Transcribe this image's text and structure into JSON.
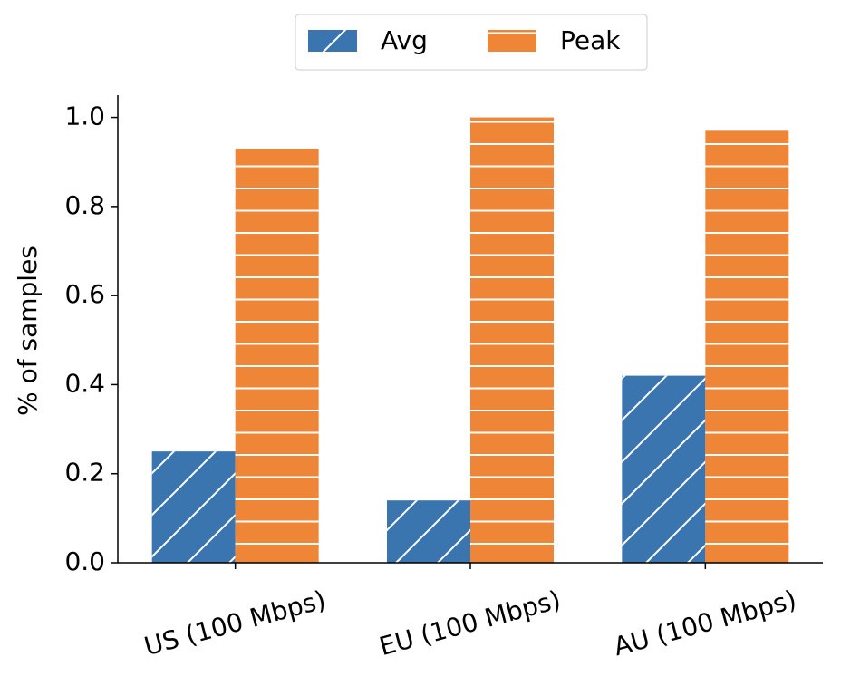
{
  "chart_data": {
    "type": "bar",
    "y_label": "% of samples",
    "categories": [
      "US (100 Mbps)",
      "EU (100 Mbps)",
      "AU (100 Mbps)"
    ],
    "series": [
      {
        "name": "Avg",
        "color": "#3b75af",
        "hatch": "diagonal",
        "values": [
          0.25,
          0.14,
          0.42
        ]
      },
      {
        "name": "Peak",
        "color": "#ef8536",
        "hatch": "horizontal",
        "values": [
          0.93,
          1.0,
          0.97
        ]
      }
    ],
    "ylim": [
      0,
      1.05
    ],
    "yticks": [
      {
        "value": 0,
        "label": "0.0"
      },
      0.2,
      0.4,
      0.6,
      0.8,
      {
        "value": 1,
        "label": "1.0"
      }
    ],
    "legend": "top"
  }
}
